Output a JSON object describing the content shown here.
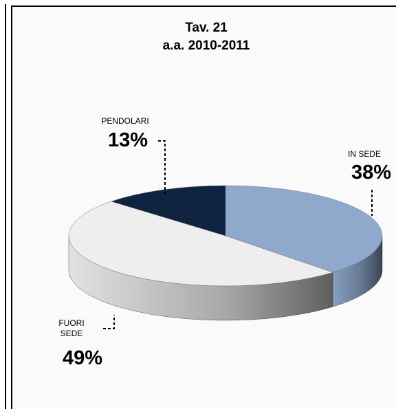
{
  "chart_data": {
    "type": "pie3d",
    "title": "Tav. 21",
    "subtitle": "a.a. 2010-2011",
    "categories": [
      "IN SEDE",
      "FUORI SEDE",
      "PENDOLARI"
    ],
    "values": [
      38,
      49,
      13
    ],
    "value_labels": [
      "38%",
      "49%",
      "13%"
    ],
    "colors": [
      "#8ea9cc",
      "#eeeeee",
      "#0f2340"
    ]
  }
}
